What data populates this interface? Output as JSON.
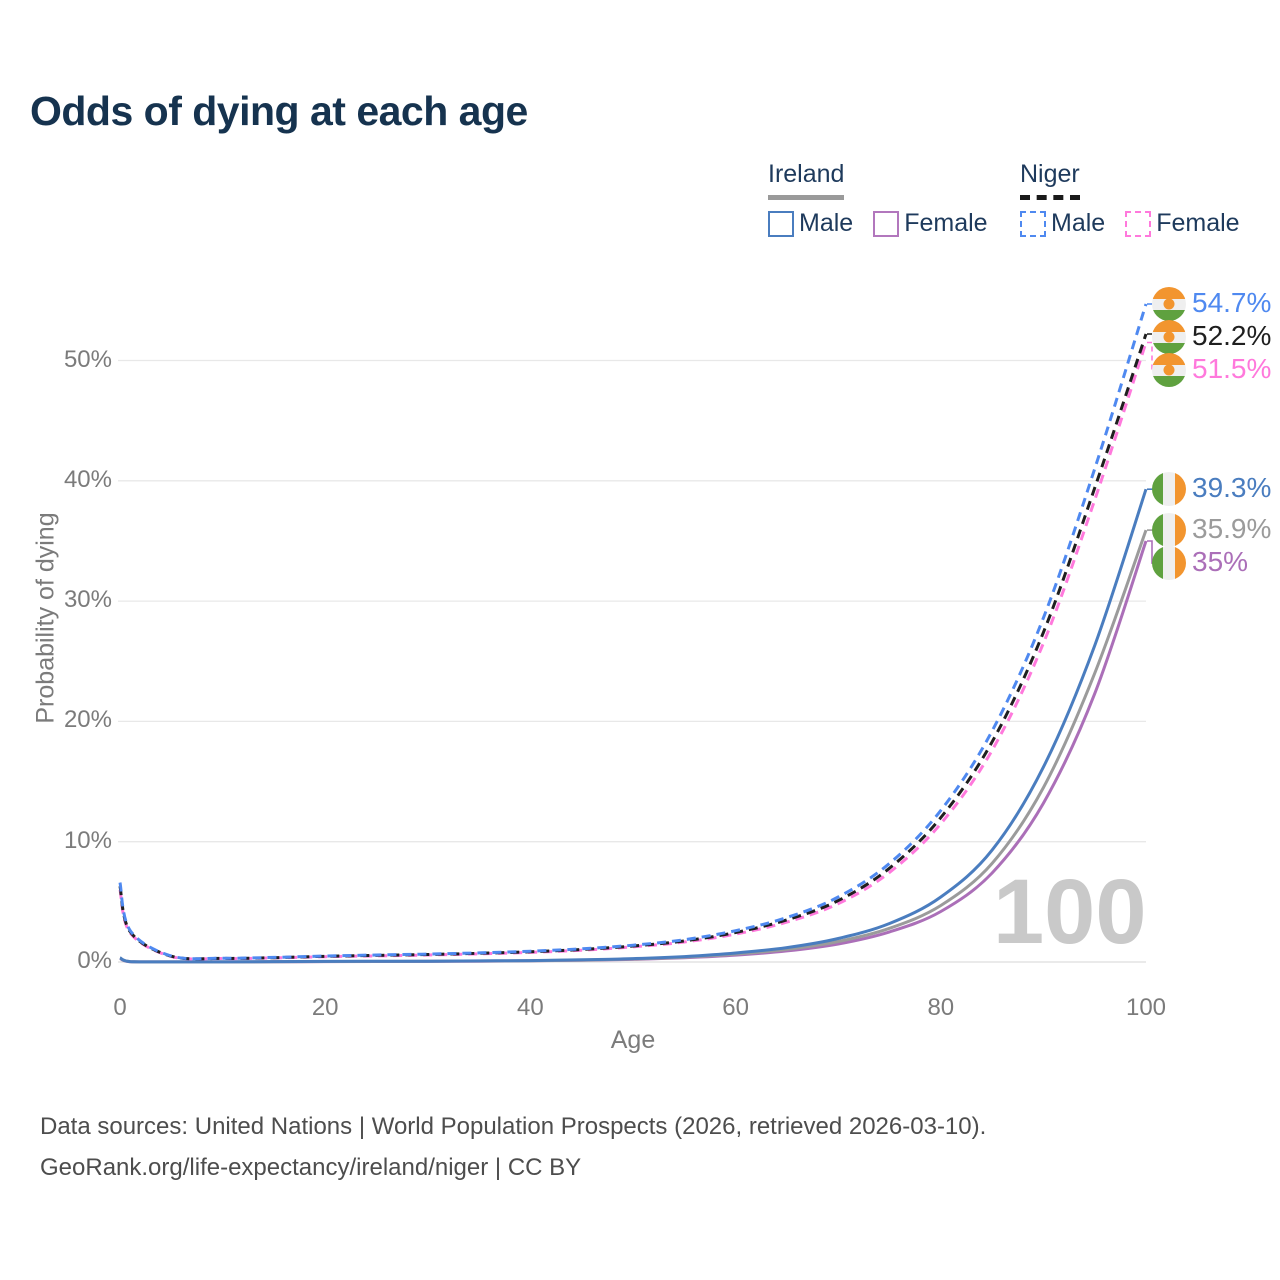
{
  "title": "Odds of dying at each age",
  "legend": {
    "groups": [
      {
        "name": "Ireland",
        "underline_style": "solid",
        "underline_color": "#9a9a9a",
        "items": [
          {
            "label": "Male",
            "color": "#4a7dbf",
            "dashed": false
          },
          {
            "label": "Female",
            "color": "#b277bd",
            "dashed": false
          }
        ]
      },
      {
        "name": "Niger",
        "underline_style": "dashed",
        "underline_color": "#1a1a1a",
        "items": [
          {
            "label": "Male",
            "color": "#4f89f0",
            "dashed": true
          },
          {
            "label": "Female",
            "color": "#ff79dc",
            "dashed": true
          }
        ]
      }
    ]
  },
  "chart_data": {
    "type": "line",
    "title": "Odds of dying at each age",
    "xlabel": "Age",
    "ylabel": "Probability of dying",
    "xlim": [
      0,
      100
    ],
    "ylim": [
      0,
      56
    ],
    "x_ticks": [
      0,
      20,
      40,
      60,
      80,
      100
    ],
    "y_ticks": [
      0,
      10,
      20,
      30,
      40,
      50
    ],
    "y_tick_suffix": "%",
    "grid": true,
    "legend_position": "top-right",
    "watermark": "100",
    "x": [
      0,
      1,
      5,
      10,
      15,
      20,
      25,
      30,
      35,
      40,
      45,
      50,
      55,
      60,
      65,
      70,
      75,
      80,
      85,
      90,
      95,
      100
    ],
    "series": [
      {
        "name": "Niger Male",
        "country": "Niger",
        "flag": "niger",
        "color": "#4f89f0",
        "dashed": true,
        "end_label": "54.7%",
        "values": [
          6.6,
          2.6,
          0.5,
          0.32,
          0.38,
          0.5,
          0.58,
          0.66,
          0.76,
          0.9,
          1.1,
          1.4,
          1.85,
          2.6,
          3.7,
          5.4,
          8.2,
          12.6,
          19.2,
          28.6,
          41.0,
          54.7
        ]
      },
      {
        "name": "Niger Both sexes",
        "country": "Niger",
        "flag": "niger",
        "color": "#1f1f1f",
        "dashed": true,
        "end_label": "52.2%",
        "values": [
          6.3,
          2.5,
          0.48,
          0.3,
          0.36,
          0.47,
          0.55,
          0.62,
          0.72,
          0.85,
          1.04,
          1.33,
          1.75,
          2.45,
          3.5,
          5.1,
          7.8,
          12.0,
          18.3,
          27.4,
          39.4,
          52.2
        ]
      },
      {
        "name": "Niger Female",
        "country": "Niger",
        "flag": "niger",
        "color": "#ff79dc",
        "dashed": true,
        "end_label": "51.5%",
        "values": [
          6.0,
          2.4,
          0.46,
          0.29,
          0.34,
          0.44,
          0.51,
          0.58,
          0.68,
          0.8,
          0.98,
          1.26,
          1.66,
          2.32,
          3.32,
          4.85,
          7.45,
          11.5,
          17.6,
          26.5,
          38.4,
          51.5
        ]
      },
      {
        "name": "Ireland Male",
        "country": "Ireland",
        "flag": "ireland",
        "color": "#4a7dbf",
        "dashed": false,
        "end_label": "39.3%",
        "values": [
          0.35,
          0.03,
          0.01,
          0.01,
          0.03,
          0.05,
          0.06,
          0.07,
          0.09,
          0.12,
          0.18,
          0.28,
          0.45,
          0.75,
          1.2,
          1.95,
          3.2,
          5.4,
          9.3,
          16.2,
          26.3,
          39.3
        ]
      },
      {
        "name": "Ireland Both sexes",
        "country": "Ireland",
        "flag": "ireland",
        "color": "#9b9b9b",
        "dashed": false,
        "end_label": "35.9%",
        "values": [
          0.33,
          0.03,
          0.01,
          0.01,
          0.02,
          0.04,
          0.05,
          0.06,
          0.08,
          0.11,
          0.16,
          0.25,
          0.4,
          0.66,
          1.05,
          1.7,
          2.8,
          4.7,
          8.2,
          14.5,
          24.0,
          35.9
        ]
      },
      {
        "name": "Ireland Female",
        "country": "Ireland",
        "flag": "ireland",
        "color": "#ab6fb8",
        "dashed": false,
        "end_label": "35%",
        "values": [
          0.3,
          0.02,
          0.01,
          0.01,
          0.02,
          0.03,
          0.04,
          0.05,
          0.07,
          0.1,
          0.14,
          0.22,
          0.36,
          0.57,
          0.92,
          1.5,
          2.5,
          4.2,
          7.4,
          13.2,
          22.3,
          35.0
        ]
      }
    ],
    "flag_colors": {
      "orange": "#f2952f",
      "white": "#efefef",
      "green": "#5fa13f"
    },
    "gridline_color": "#e8e8e8"
  },
  "footer": {
    "line1": "Data sources: United Nations | World Population Prospects (2026, retrieved 2026-03-10).",
    "line2": "GeoRank.org/life-expectancy/ireland/niger | CC BY"
  }
}
